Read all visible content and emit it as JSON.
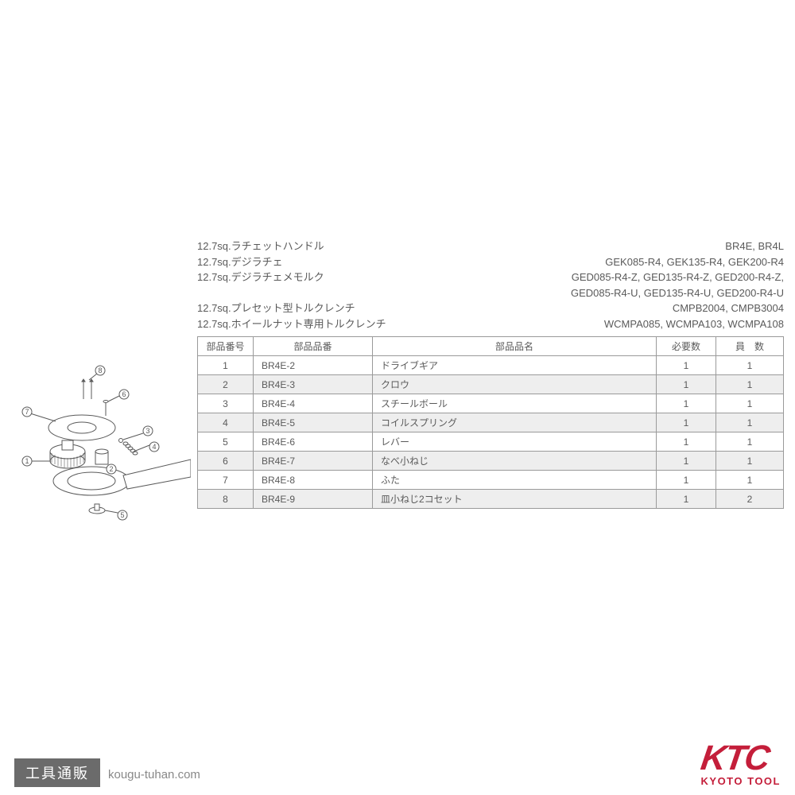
{
  "colors": {
    "text": "#5a5a5a",
    "border": "#9a9a9a",
    "row_shade": "#eeeeee",
    "logo_red": "#c41e3a",
    "footer_box_bg": "#6b6b6b",
    "footer_url": "#888888",
    "background": "#ffffff"
  },
  "header": {
    "rows": [
      {
        "left": "12.7sq.ラチェットハンドル",
        "right": "BR4E, BR4L"
      },
      {
        "left": "12.7sq.デジラチェ",
        "right": "GEK085-R4, GEK135-R4, GEK200-R4"
      },
      {
        "left": "12.7sq.デジラチェメモルク",
        "right": "GED085-R4-Z, GED135-R4-Z, GED200-R4-Z,"
      },
      {
        "left": "",
        "right": "GED085-R4-U, GED135-R4-U, GED200-R4-U"
      },
      {
        "left": "12.7sq.プレセット型トルクレンチ",
        "right": "CMPB2004, CMPB3004"
      },
      {
        "left": "12.7sq.ホイールナット専用トルクレンチ",
        "right": "WCMPA085, WCMPA103, WCMPA108"
      }
    ]
  },
  "table": {
    "columns": [
      "部品番号",
      "部品品番",
      "部品品名",
      "必要数",
      "員　数"
    ],
    "rows": [
      {
        "num": "1",
        "code": "BR4E-2",
        "name": "ドライブギア",
        "req": "1",
        "qty": "1",
        "shaded": false
      },
      {
        "num": "2",
        "code": "BR4E-3",
        "name": "クロウ",
        "req": "1",
        "qty": "1",
        "shaded": true
      },
      {
        "num": "3",
        "code": "BR4E-4",
        "name": "スチールボール",
        "req": "1",
        "qty": "1",
        "shaded": false
      },
      {
        "num": "4",
        "code": "BR4E-5",
        "name": "コイルスプリング",
        "req": "1",
        "qty": "1",
        "shaded": true
      },
      {
        "num": "5",
        "code": "BR4E-6",
        "name": "レバー",
        "req": "1",
        "qty": "1",
        "shaded": false
      },
      {
        "num": "6",
        "code": "BR4E-7",
        "name": "なべ小ねじ",
        "req": "1",
        "qty": "1",
        "shaded": true
      },
      {
        "num": "7",
        "code": "BR4E-8",
        "name": "ふた",
        "req": "1",
        "qty": "1",
        "shaded": false
      },
      {
        "num": "8",
        "code": "BR4E-9",
        "name": "皿小ねじ2コセット",
        "req": "1",
        "qty": "2",
        "shaded": true
      }
    ]
  },
  "diagram": {
    "labels": [
      "1",
      "2",
      "3",
      "4",
      "5",
      "6",
      "7",
      "8"
    ]
  },
  "footer": {
    "box_text": "工具通販",
    "url": "kougu-tuhan.com",
    "logo_main": "KTC",
    "logo_sub": "KYOTO TOOL"
  }
}
